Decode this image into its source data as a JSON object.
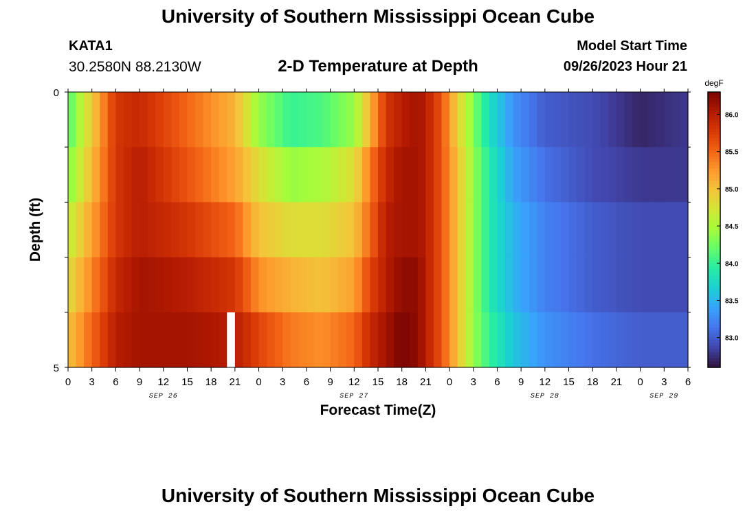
{
  "header": {
    "title": "University of Southern Mississippi Ocean Cube",
    "station_id": "KATA1",
    "station_coords": "30.2580N  88.2130W",
    "subtitle": "2-D Temperature at Depth",
    "model_start_label": "Model Start Time",
    "model_start_value": "09/26/2023 Hour 21"
  },
  "footer": {
    "title": "University of Southern Mississippi Ocean Cube"
  },
  "chart_data": {
    "type": "heatmap",
    "xlabel": "Forecast Time(Z)",
    "ylabel": "Depth (ft)",
    "y_tick_labels": [
      "0",
      "5"
    ],
    "ylim": [
      0,
      5
    ],
    "x_tick_labels": [
      "0",
      "3",
      "6",
      "9",
      "12",
      "15",
      "18",
      "21",
      "0",
      "3",
      "6",
      "9",
      "12",
      "15",
      "18",
      "21",
      "0",
      "3",
      "6",
      "9",
      "12",
      "15",
      "18",
      "21",
      "0",
      "3",
      "6"
    ],
    "xlim_hours": [
      0,
      78
    ],
    "x_step_hours": 1,
    "date_labels": [
      {
        "text": "SEP 26",
        "hour": 12
      },
      {
        "text": "SEP 27",
        "hour": 36
      },
      {
        "text": "SEP 28",
        "hour": 60
      },
      {
        "text": "SEP 29",
        "hour": 75
      }
    ],
    "colorbar": {
      "unit": "degF",
      "tick_labels": [
        "86.0",
        "85.5",
        "85.0",
        "84.5",
        "84.0",
        "83.5",
        "83.0"
      ],
      "range": [
        82.6,
        86.3
      ],
      "colors": [
        "#30123b",
        "#4145ab",
        "#4675ed",
        "#39a2fc",
        "#1bcfd4",
        "#24eca6",
        "#61fc6c",
        "#a4fc3b",
        "#d1e834",
        "#f3c63a",
        "#fe9b2d",
        "#f36315",
        "#d93806",
        "#b11901",
        "#7a0402"
      ]
    },
    "depth_layers": [
      "0",
      "1",
      "2",
      "3",
      "4",
      "5"
    ],
    "missing_hour": 20,
    "x_hours": [
      0,
      6,
      9,
      15,
      21,
      24,
      28,
      32,
      36,
      38,
      40,
      42,
      44,
      45,
      47,
      49,
      51,
      53,
      56,
      60,
      66,
      72,
      78
    ],
    "values": [
      [
        84.1,
        85.8,
        85.9,
        85.5,
        85.1,
        84.4,
        84.0,
        84.1,
        84.4,
        85.1,
        85.8,
        86.0,
        86.1,
        86.0,
        85.6,
        84.9,
        84.3,
        83.8,
        83.3,
        83.0,
        82.9,
        82.7,
        82.8
      ],
      [
        84.3,
        85.8,
        86.0,
        85.6,
        85.2,
        84.8,
        84.4,
        84.5,
        84.8,
        85.4,
        85.9,
        86.1,
        86.1,
        86.0,
        85.6,
        85.0,
        84.4,
        83.9,
        83.4,
        83.1,
        82.9,
        82.8,
        82.8
      ],
      [
        84.6,
        85.8,
        86.0,
        85.8,
        85.5,
        85.0,
        84.8,
        84.8,
        85.0,
        85.5,
        86.0,
        86.1,
        86.1,
        86.0,
        85.6,
        85.0,
        84.4,
        83.9,
        83.5,
        83.2,
        83.0,
        82.9,
        82.9
      ],
      [
        84.8,
        85.9,
        86.1,
        86.0,
        85.8,
        85.3,
        85.1,
        85.0,
        85.2,
        85.7,
        86.0,
        86.2,
        86.2,
        86.0,
        85.6,
        85.0,
        84.4,
        83.9,
        83.5,
        83.2,
        83.0,
        82.9,
        82.9
      ],
      [
        85.0,
        86.0,
        86.1,
        86.1,
        86.0,
        85.7,
        85.4,
        85.3,
        85.5,
        85.9,
        86.1,
        86.3,
        86.2,
        86.0,
        85.6,
        85.0,
        84.4,
        84.0,
        83.6,
        83.3,
        83.1,
        83.0,
        83.0
      ]
    ]
  }
}
